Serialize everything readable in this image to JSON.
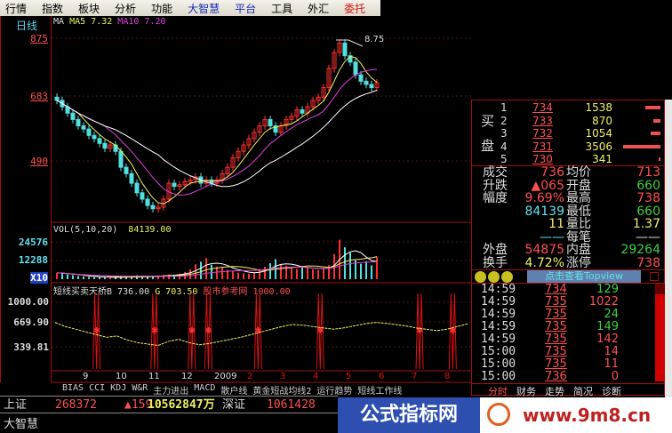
{
  "menu": [
    "行情",
    "指数",
    "板块",
    "分析",
    "功能",
    "大智慧",
    "平台",
    "工具",
    "外汇",
    "委托"
  ],
  "chart": {
    "period": "日线",
    "ma_label": "MA",
    "ma5_label": "MA5",
    "ma5": "7.32",
    "ma10_label": "MA10",
    "ma10": "7.20",
    "price_axis": [
      "875",
      "683",
      "490"
    ],
    "high_marker": "8.75",
    "closes": [
      680,
      660,
      640,
      620,
      600,
      590,
      570,
      560,
      545,
      530,
      540,
      520,
      470,
      450,
      420,
      390,
      370,
      350,
      340,
      345,
      370,
      420,
      410,
      415,
      425,
      430,
      440,
      420,
      430,
      420,
      430,
      450,
      470,
      500,
      520,
      540,
      560,
      580,
      600,
      620,
      600,
      580,
      600,
      620,
      630,
      650,
      640,
      660,
      680,
      690,
      720,
      780,
      830,
      860,
      820,
      800,
      760,
      740,
      730,
      720,
      735
    ],
    "volumes": [
      4200,
      3800,
      3000,
      2600,
      2100,
      1800,
      1500,
      1300,
      1200,
      1100,
      1400,
      1300,
      1200,
      1500,
      1800,
      2600,
      2100,
      1900,
      1700,
      2400,
      2800,
      3100,
      2900,
      3600,
      4800,
      6500,
      9800,
      11500,
      13800,
      9500,
      8200,
      7600,
      6100,
      5500,
      4200,
      3800,
      3600,
      4200,
      6800,
      8200,
      10500,
      13200,
      9800,
      8800,
      7200,
      6800,
      8200,
      7900,
      6500,
      5900,
      6800,
      9200,
      16500,
      26000,
      21000,
      17500,
      12400,
      10200,
      11800,
      9100,
      14500
    ]
  },
  "volume": {
    "label": "VOL(5,10,20)",
    "value": "84139.00",
    "axis": [
      "24576",
      "12288"
    ],
    "scale": "X10"
  },
  "indicator": {
    "name": "短线买卖天桥B",
    "b": "736.00",
    "g_label": "G",
    "g": "703.50",
    "ref_label": "股市参考网",
    "ref": "1000.00",
    "axis": [
      "1000.00",
      "669.90",
      "339.81"
    ],
    "line": [
      700,
      640,
      600,
      560,
      520,
      480,
      500,
      440,
      400,
      380,
      360,
      420,
      450,
      400,
      370,
      390,
      420,
      450,
      480,
      520,
      560,
      600,
      640,
      670,
      660,
      640,
      620,
      600,
      620,
      650,
      680,
      700,
      690,
      670,
      650,
      620,
      600,
      580,
      600,
      640,
      680
    ],
    "spike_positions": [
      0.1,
      0.24,
      0.33,
      0.37,
      0.49,
      0.64,
      0.88,
      0.96
    ]
  },
  "date_axis": [
    "9",
    "10",
    "11",
    "12",
    "2009",
    "2",
    "3",
    "4",
    "5",
    "6",
    "7",
    "8"
  ],
  "indicator_tabs": [
    "BIAS",
    "CCI",
    "KDJ",
    "W&R",
    "主力进出",
    "MACD",
    "散户线",
    "黄金短战均线2",
    "运行趋势",
    "短线工作线"
  ],
  "order_book": {
    "buy_label_1": "买",
    "buy_label_2": "盘",
    "levels": [
      {
        "n": "1",
        "price": "734",
        "vol": "1538",
        "bar": 0.4
      },
      {
        "n": "2",
        "price": "733",
        "vol": "870",
        "bar": 0.2
      },
      {
        "n": "3",
        "price": "732",
        "vol": "1054",
        "bar": 0.25
      },
      {
        "n": "4",
        "price": "731",
        "vol": "3506",
        "bar": 1.0
      },
      {
        "n": "5",
        "price": "730",
        "vol": "341",
        "bar": 0.05
      }
    ]
  },
  "quote": [
    {
      "l": "成交",
      "v": "736",
      "l2": "均价",
      "v2": "713"
    },
    {
      "l": "升跌",
      "v": "▲065",
      "l2": "开盘",
      "v2": "660"
    },
    {
      "l": "幅度",
      "v": "9.69%",
      "l2": "最高",
      "v2": "738"
    },
    {
      "l": "",
      "v": "84139",
      "l2": "最低",
      "v2": "660"
    },
    {
      "l": "",
      "v": "11",
      "l2": "量比",
      "v2": "1.37"
    },
    {
      "l": "",
      "v": "——",
      "l2": "每笔",
      "v2": "——"
    },
    {
      "l": "外盘",
      "v": "54875",
      "l2": "内盘",
      "v2": "29264"
    },
    {
      "l": "换手",
      "v": "4.72%",
      "l2": "涨停",
      "v2": "738"
    }
  ],
  "topview_button": "点击查看Topview",
  "ticks": [
    {
      "t": "14:59",
      "p": "734",
      "v": "129",
      "c": "g"
    },
    {
      "t": "14:59",
      "p": "735",
      "v": "1022",
      "c": "r"
    },
    {
      "t": "14:59",
      "p": "735",
      "v": "24",
      "c": "g"
    },
    {
      "t": "14:59",
      "p": "735",
      "v": "149",
      "c": "g"
    },
    {
      "t": "14:59",
      "p": "735",
      "v": "142",
      "c": "r"
    },
    {
      "t": "15:00",
      "p": "735",
      "v": "14",
      "c": "r"
    },
    {
      "t": "15:00",
      "p": "735",
      "v": "11",
      "c": "r"
    },
    {
      "t": "15:00",
      "p": "736",
      "v": "0",
      "c": "r"
    }
  ],
  "right_tabs": [
    "分时",
    "财务",
    "走势",
    "简况",
    "诊断"
  ],
  "status": {
    "sh_label": "上证",
    "sh_index": "268372",
    "sh_change": "▲159",
    "sh_amount": "10562847万",
    "sz_label": "深证",
    "sz_index": "1061428",
    "app": "大智慧"
  },
  "watermark": {
    "text": "公式指标网",
    "site": "www.9m8.cn"
  },
  "colors": {
    "up": "#ff3030",
    "down": "#50e0e0",
    "ma5": "#f0f060",
    "ma10": "#e040e0",
    "grid": "#a01010",
    "indicator_line": "#f0f060"
  }
}
